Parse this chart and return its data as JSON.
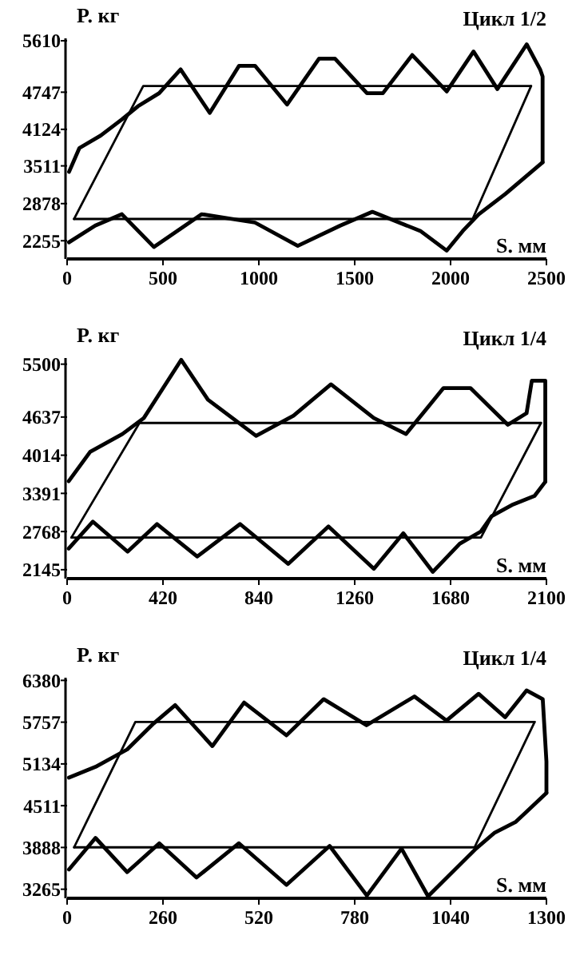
{
  "chart_data": [
    {
      "type": "line",
      "title": "Цикл 1/2",
      "xlabel": "S. мм",
      "ylabel": "P. кг",
      "xlim": [
        0,
        2500
      ],
      "ylim": [
        1950,
        5650
      ],
      "xticks": [
        0,
        500,
        1000,
        1500,
        2000,
        2500
      ],
      "yticks": [
        2255,
        2878,
        3511,
        4124,
        4747,
        5610
      ],
      "series": [
        {
          "color": "#000000",
          "x": [
            36,
            397,
            2420
          ],
          "values": [
            2620,
            4850,
            4850
          ]
        },
        {
          "color": "#000000",
          "x": [
            36,
            2115,
            2420
          ],
          "values": [
            2620,
            2620,
            4850
          ]
        },
        {
          "color": "#000000",
          "x": [
            10,
            64,
            175,
            286,
            369,
            480,
            592,
            744,
            897,
            980,
            1147,
            1314,
            1397,
            1564,
            1647,
            1800,
            1980,
            2120,
            2244,
            2397,
            2467,
            2480,
            2480
          ],
          "values": [
            3410,
            3810,
            4020,
            4290,
            4510,
            4730,
            5130,
            4400,
            5190,
            5190,
            4540,
            5310,
            5310,
            4730,
            4730,
            5370,
            4760,
            5430,
            4800,
            5550,
            5130,
            5010,
            3570
          ]
        },
        {
          "color": "#000000",
          "x": [
            10,
            147,
            286,
            453,
            702,
            980,
            1203,
            1425,
            1592,
            1842,
            1980,
            2064,
            2147,
            2286,
            2480
          ],
          "values": [
            2230,
            2510,
            2700,
            2150,
            2700,
            2560,
            2170,
            2510,
            2740,
            2420,
            2090,
            2420,
            2700,
            3040,
            3570
          ]
        }
      ]
    },
    {
      "type": "line",
      "title": "Цикл 1/4",
      "xlabel": "S. мм",
      "ylabel": "P. кг",
      "xlim": [
        0,
        2100
      ],
      "ylim": [
        2000,
        5600
      ],
      "xticks": [
        0,
        420,
        840,
        1260,
        1680,
        2100
      ],
      "yticks": [
        2145,
        2768,
        3391,
        4014,
        4637,
        5500
      ],
      "series": [
        {
          "color": "#000000",
          "x": [
            19,
            317,
            2076
          ],
          "values": [
            2670,
            4540,
            4540
          ]
        },
        {
          "color": "#000000",
          "x": [
            19,
            1813,
            2076
          ],
          "values": [
            2670,
            2670,
            4540
          ]
        },
        {
          "color": "#000000",
          "x": [
            7,
            101,
            242,
            336,
            500,
            617,
            828,
            992,
            1156,
            1344,
            1485,
            1649,
            1767,
            1931,
            2013,
            2036,
            2095,
            2095
          ],
          "values": [
            3590,
            4070,
            4360,
            4620,
            5570,
            4920,
            4330,
            4660,
            5170,
            4620,
            4360,
            5110,
            5110,
            4510,
            4700,
            5230,
            5230,
            3580
          ]
        },
        {
          "color": "#000000",
          "x": [
            7,
            113,
            265,
            394,
            570,
            758,
            969,
            1145,
            1344,
            1473,
            1602,
            1720,
            1813,
            1860,
            1954,
            2048,
            2095
          ],
          "values": [
            2490,
            2930,
            2440,
            2890,
            2360,
            2890,
            2240,
            2850,
            2160,
            2740,
            2110,
            2570,
            2770,
            3020,
            3210,
            3350,
            3580
          ]
        }
      ]
    },
    {
      "type": "line",
      "title": "Цикл 1/4",
      "xlabel": "S. мм",
      "ylabel": "P. кг",
      "xlim": [
        0,
        1300
      ],
      "ylim": [
        3130,
        6420
      ],
      "xticks": [
        0,
        260,
        520,
        780,
        1040,
        1300
      ],
      "yticks": [
        3265,
        3888,
        4511,
        5134,
        5757,
        6380
      ],
      "series": [
        {
          "color": "#000000",
          "x": [
            19,
            185,
            1268
          ],
          "values": [
            3890,
            5760,
            5760
          ]
        },
        {
          "color": "#000000",
          "x": [
            19,
            1105,
            1268
          ],
          "values": [
            3890,
            3890,
            5760
          ]
        },
        {
          "color": "#000000",
          "x": [
            5,
            77,
            163,
            235,
            293,
            394,
            480,
            595,
            696,
            812,
            942,
            1029,
            1116,
            1188,
            1246,
            1290,
            1300,
            1300
          ],
          "values": [
            4930,
            5090,
            5350,
            5740,
            6010,
            5400,
            6050,
            5560,
            6100,
            5710,
            6140,
            5780,
            6180,
            5830,
            6230,
            6100,
            5170,
            4700
          ]
        },
        {
          "color": "#000000",
          "x": [
            5,
            77,
            163,
            250,
            351,
            466,
            595,
            712,
            813,
            907,
            979,
            1109,
            1160,
            1217,
            1300
          ],
          "values": [
            3560,
            4030,
            3520,
            3950,
            3440,
            3950,
            3330,
            3910,
            3170,
            3870,
            3160,
            3870,
            4110,
            4270,
            4700
          ]
        }
      ]
    }
  ]
}
